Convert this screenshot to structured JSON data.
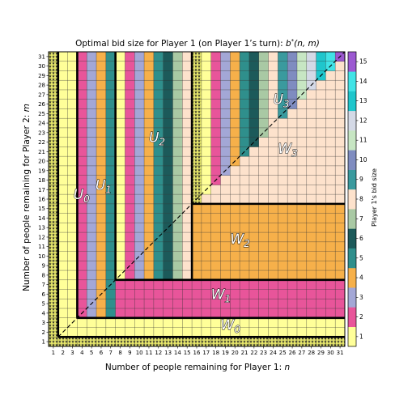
{
  "chart_data": {
    "type": "heatmap",
    "title": "Optimal bid size for Player 1 (on Player 1's turn): b*(n, m)",
    "title_text": "Optimal bid size for Player 1 (on Player 1’s turn): ",
    "title_math": "b",
    "title_math_sup": "*",
    "title_math_args": "(n, m)",
    "xlabel": "Number of people remaining for Player 1: ",
    "xlabel_var": "n",
    "ylabel": "Number of people remaining for Player 2: ",
    "ylabel_var": "m",
    "x_range": [
      1,
      31
    ],
    "y_range": [
      1,
      31
    ],
    "x_ticks": [
      "1",
      "2",
      "3",
      "4",
      "5",
      "6",
      "7",
      "8",
      "9",
      "10",
      "11",
      "12",
      "13",
      "14",
      "15",
      "16",
      "17",
      "18",
      "19",
      "20",
      "21",
      "22",
      "23",
      "24",
      "25",
      "26",
      "27",
      "28",
      "29",
      "30",
      "31"
    ],
    "y_ticks": [
      "1",
      "2",
      "3",
      "4",
      "5",
      "6",
      "7",
      "8",
      "9",
      "10",
      "11",
      "12",
      "13",
      "14",
      "15",
      "16",
      "17",
      "18",
      "19",
      "20",
      "21",
      "22",
      "23",
      "24",
      "25",
      "26",
      "27",
      "28",
      "29",
      "30",
      "31"
    ],
    "colorbar": {
      "label": "Player 1's bid size",
      "range": [
        1,
        15
      ],
      "ticks": [
        "1",
        "2",
        "3",
        "4",
        "5",
        "6",
        "7",
        "8",
        "9",
        "10",
        "11",
        "12",
        "13",
        "14",
        "15"
      ],
      "colors": [
        "#ffff99",
        "#e8559a",
        "#a3a7d6",
        "#f6b04a",
        "#2f8f8c",
        "#1c5a5a",
        "#a9c9a4",
        "#fde2cc",
        "#3a9a9e",
        "#7f8cc0",
        "#c7e6c3",
        "#d4d9e6",
        "#1fc6cc",
        "#41e3e6",
        "#9c59d1"
      ]
    },
    "overlays": {
      "diagonal": "dashed line n = m",
      "stars": "terminal states at n = 1 and m = 1"
    },
    "regions": [
      {
        "label": "U",
        "sub": "0",
        "value_rule": "b = 1",
        "cells": "n = 2..3, m = 2..31"
      },
      {
        "label": "U",
        "sub": "1",
        "value_rule": "b = n - 2",
        "cells": "n = 4..7, m = 4..31"
      },
      {
        "label": "U",
        "sub": "2",
        "value_rule": "b = n - 7 (constant per column)",
        "cells": "n = 8..15, m = 8..31"
      },
      {
        "label": "U",
        "sub": "3",
        "value_rule": "b = n - 16 (constant per column)",
        "cells": "n = 16..31, m = 16..31"
      },
      {
        "label": "W",
        "sub": "0",
        "value_rule": "b = 1",
        "cells": "m = 2..3, n = 4..31"
      },
      {
        "label": "W",
        "sub": "1",
        "value_rule": "b = 2",
        "cells": "m = 4..7, n = 8..31"
      },
      {
        "label": "W",
        "sub": "2",
        "value_rule": "b = 4",
        "cells": "m = 8..15, n = 16..31"
      },
      {
        "label": "W",
        "sub": "3",
        "value_rule": "b = 8",
        "cells": "m = 16..31, n = 16..31 with n > m"
      }
    ],
    "grid": true
  }
}
